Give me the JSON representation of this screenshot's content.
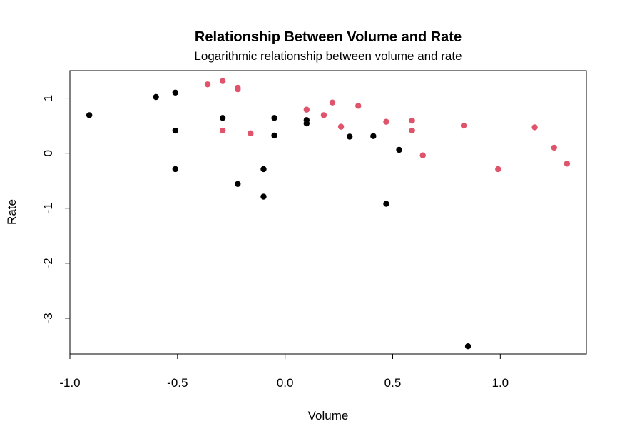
{
  "chart_data": {
    "type": "scatter",
    "title": "Relationship Between Volume and Rate",
    "subtitle": "Logarithmic relationship between volume and rate",
    "xlabel": "Volume",
    "ylabel": "Rate",
    "xlim": [
      -1.0,
      1.4
    ],
    "ylim": [
      -3.65,
      1.5
    ],
    "x_ticks": [
      -1.0,
      -0.5,
      0.0,
      0.5,
      1.0
    ],
    "x_tick_labels": [
      "-1.0",
      "-0.5",
      "0.0",
      "0.5",
      "1.0"
    ],
    "y_ticks": [
      -3,
      -2,
      -1,
      0,
      1
    ],
    "y_tick_labels": [
      "-3",
      "-2",
      "-1",
      "0",
      "1"
    ],
    "grid": false,
    "legend": "none",
    "series": [
      {
        "color": "#000000",
        "points": [
          {
            "x": -0.91,
            "y": 0.69
          },
          {
            "x": -0.6,
            "y": 1.02
          },
          {
            "x": -0.51,
            "y": 1.1
          },
          {
            "x": -0.51,
            "y": 0.41
          },
          {
            "x": -0.51,
            "y": -0.29
          },
          {
            "x": -0.29,
            "y": 0.64
          },
          {
            "x": -0.22,
            "y": -0.56
          },
          {
            "x": -0.1,
            "y": -0.29
          },
          {
            "x": -0.1,
            "y": -0.79
          },
          {
            "x": -0.05,
            "y": 0.64
          },
          {
            "x": -0.05,
            "y": 0.32
          },
          {
            "x": 0.1,
            "y": 0.6
          },
          {
            "x": 0.1,
            "y": 0.54
          },
          {
            "x": 0.3,
            "y": 0.3
          },
          {
            "x": 0.41,
            "y": 0.31
          },
          {
            "x": 0.47,
            "y": -0.92
          },
          {
            "x": 0.53,
            "y": 0.06
          },
          {
            "x": 0.85,
            "y": -3.51
          }
        ]
      },
      {
        "color": "#DF536B",
        "points": [
          {
            "x": -0.36,
            "y": 1.25
          },
          {
            "x": -0.29,
            "y": 1.31
          },
          {
            "x": -0.29,
            "y": 0.41
          },
          {
            "x": -0.22,
            "y": 1.19
          },
          {
            "x": -0.22,
            "y": 1.16
          },
          {
            "x": -0.16,
            "y": 0.36
          },
          {
            "x": 0.1,
            "y": 0.79
          },
          {
            "x": 0.18,
            "y": 0.69
          },
          {
            "x": 0.22,
            "y": 0.92
          },
          {
            "x": 0.26,
            "y": 0.48
          },
          {
            "x": 0.34,
            "y": 0.86
          },
          {
            "x": 0.47,
            "y": 0.57
          },
          {
            "x": 0.59,
            "y": 0.59
          },
          {
            "x": 0.59,
            "y": 0.41
          },
          {
            "x": 0.64,
            "y": -0.04
          },
          {
            "x": 0.83,
            "y": 0.5
          },
          {
            "x": 0.99,
            "y": -0.29
          },
          {
            "x": 1.16,
            "y": 0.47
          },
          {
            "x": 1.25,
            "y": 0.1
          },
          {
            "x": 1.31,
            "y": -0.19
          }
        ]
      }
    ]
  }
}
